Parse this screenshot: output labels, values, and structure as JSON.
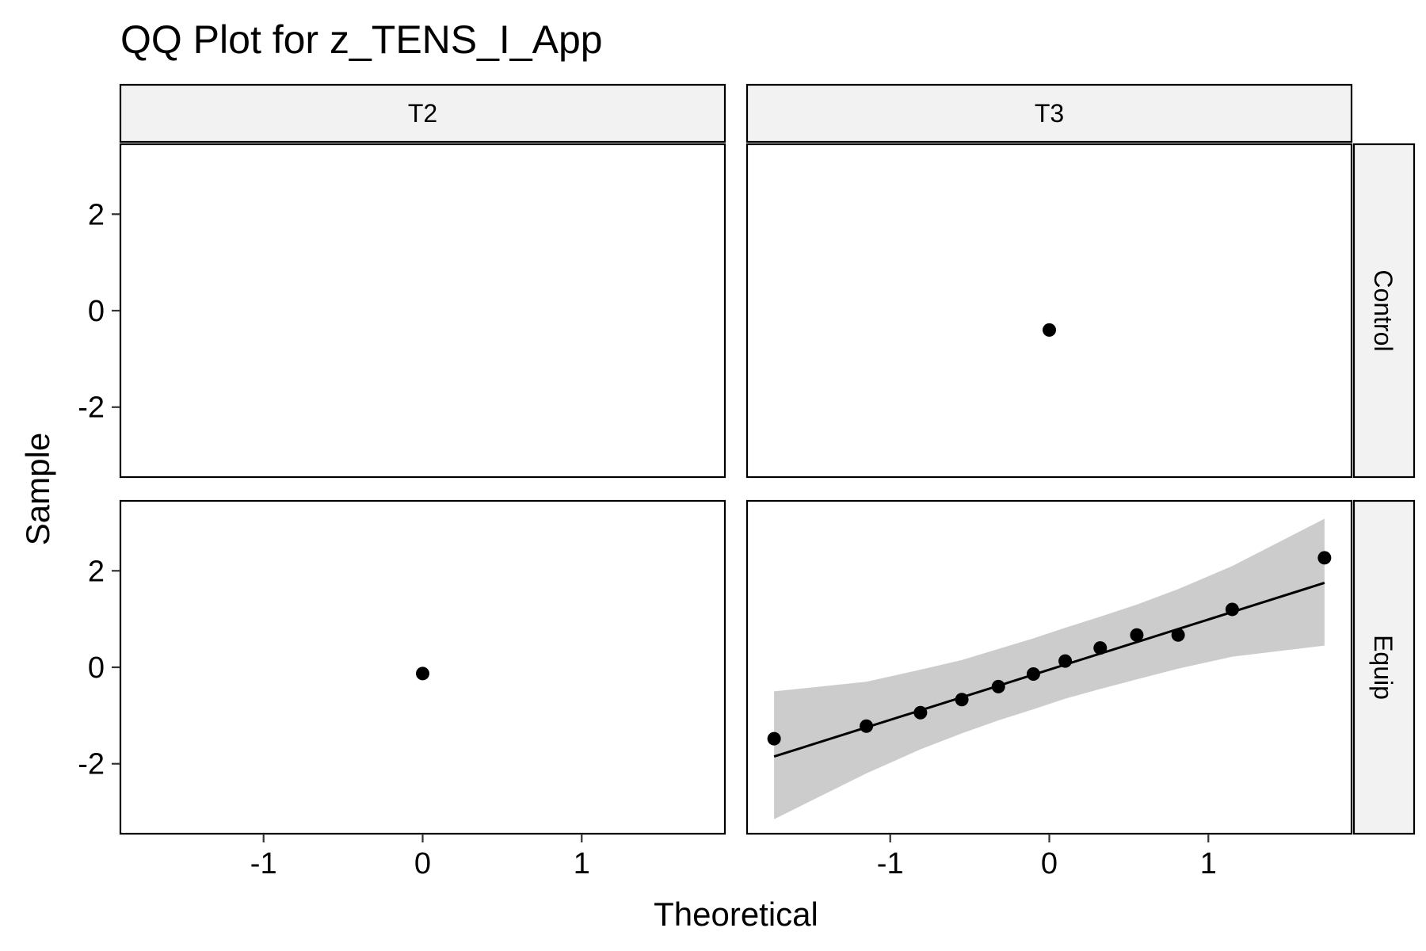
{
  "chart_data": {
    "type": "scatter",
    "title": "QQ Plot for z_TENS_I_App",
    "xlabel": "Theoretical",
    "ylabel": "Sample",
    "xlim": [
      -1.9,
      1.9
    ],
    "ylim": [
      -3.45,
      3.45
    ],
    "x_ticks": [
      -1,
      0,
      1
    ],
    "x_tick_labels": [
      "-1",
      "0",
      "1"
    ],
    "y_ticks": [
      -2,
      0,
      2
    ],
    "y_tick_labels": [
      "-2",
      "0",
      "2"
    ],
    "col_facets": [
      "T2",
      "T3"
    ],
    "row_facets": [
      "Control",
      "Equip"
    ],
    "grid": false,
    "colors": {
      "point": "#000000",
      "line": "#000000",
      "band": "#cccccc",
      "strip": "#f2f2f2"
    },
    "panels": [
      {
        "col": "T2",
        "row": "Control",
        "points": []
      },
      {
        "col": "T3",
        "row": "Control",
        "points": [
          {
            "x": 0.0,
            "y": -0.4
          }
        ]
      },
      {
        "col": "T2",
        "row": "Equip",
        "points": [
          {
            "x": 0.0,
            "y": -0.13
          }
        ]
      },
      {
        "col": "T3",
        "row": "Equip",
        "points": [
          {
            "x": -1.73,
            "y": -1.48
          },
          {
            "x": -1.15,
            "y": -1.22
          },
          {
            "x": -0.81,
            "y": -0.94
          },
          {
            "x": -0.55,
            "y": -0.67
          },
          {
            "x": -0.32,
            "y": -0.4
          },
          {
            "x": -0.1,
            "y": -0.14
          },
          {
            "x": 0.1,
            "y": 0.13
          },
          {
            "x": 0.32,
            "y": 0.4
          },
          {
            "x": 0.55,
            "y": 0.67
          },
          {
            "x": 0.81,
            "y": 0.67
          },
          {
            "x": 1.15,
            "y": 1.2
          },
          {
            "x": 1.73,
            "y": 2.27
          }
        ],
        "line": [
          {
            "x": -1.73,
            "y": -1.85
          },
          {
            "x": 1.73,
            "y": 1.75
          }
        ],
        "band": {
          "x": [
            -1.73,
            -1.15,
            -0.81,
            -0.55,
            -0.32,
            -0.1,
            0.1,
            0.32,
            0.55,
            0.81,
            1.15,
            1.73
          ],
          "lower": [
            -3.15,
            -2.2,
            -1.7,
            -1.37,
            -1.1,
            -0.87,
            -0.65,
            -0.45,
            -0.25,
            -0.03,
            0.22,
            0.45
          ],
          "upper": [
            -0.5,
            -0.3,
            -0.05,
            0.15,
            0.38,
            0.6,
            0.82,
            1.05,
            1.3,
            1.62,
            2.1,
            3.08
          ]
        }
      }
    ]
  }
}
